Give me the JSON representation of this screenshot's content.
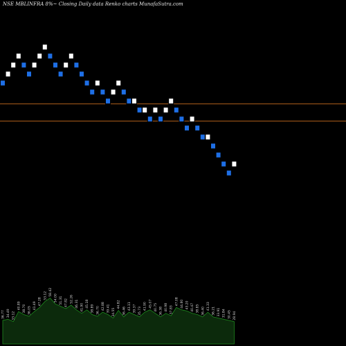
{
  "chart_data": {
    "type": "renko",
    "title": "NSE MBLINFRA 8%~ Closing Daily data Renko charts MunafaSutra.com",
    "colors": {
      "background": "#000000",
      "up_brick": "#ffffff",
      "down_brick": "#1e6fe6",
      "brick_border": "#000000",
      "reference_line": "#b8651b",
      "volume_fill": "#0c2a0c",
      "volume_stroke": "#1e8a1e",
      "volume_label": "#d8d8d8"
    },
    "price_axis_range": [
      0,
      100
    ],
    "reference_levels": [
      70.0,
      65.0
    ],
    "bricks": [
      {
        "dir": "down",
        "price": 76.0
      },
      {
        "dir": "up",
        "price": 78.6
      },
      {
        "dir": "up",
        "price": 81.2
      },
      {
        "dir": "up",
        "price": 83.8
      },
      {
        "dir": "down",
        "price": 81.2
      },
      {
        "dir": "down",
        "price": 78.6
      },
      {
        "dir": "up",
        "price": 81.2
      },
      {
        "dir": "up",
        "price": 83.8
      },
      {
        "dir": "up",
        "price": 86.4
      },
      {
        "dir": "down",
        "price": 83.8
      },
      {
        "dir": "down",
        "price": 81.2
      },
      {
        "dir": "down",
        "price": 78.6
      },
      {
        "dir": "up",
        "price": 81.2
      },
      {
        "dir": "up",
        "price": 83.8
      },
      {
        "dir": "down",
        "price": 81.2
      },
      {
        "dir": "down",
        "price": 78.6
      },
      {
        "dir": "down",
        "price": 76.0
      },
      {
        "dir": "down",
        "price": 73.4
      },
      {
        "dir": "up",
        "price": 76.0
      },
      {
        "dir": "down",
        "price": 73.4
      },
      {
        "dir": "down",
        "price": 70.8
      },
      {
        "dir": "up",
        "price": 73.4
      },
      {
        "dir": "up",
        "price": 76.0
      },
      {
        "dir": "down",
        "price": 73.4
      },
      {
        "dir": "down",
        "price": 70.8
      },
      {
        "dir": "up",
        "price": 70.8
      },
      {
        "dir": "down",
        "price": 68.2
      },
      {
        "dir": "up",
        "price": 68.2
      },
      {
        "dir": "down",
        "price": 65.6
      },
      {
        "dir": "up",
        "price": 68.2
      },
      {
        "dir": "down",
        "price": 65.6
      },
      {
        "dir": "up",
        "price": 68.2
      },
      {
        "dir": "up",
        "price": 70.8
      },
      {
        "dir": "down",
        "price": 68.2
      },
      {
        "dir": "down",
        "price": 65.6
      },
      {
        "dir": "down",
        "price": 63.0
      },
      {
        "dir": "up",
        "price": 65.6
      },
      {
        "dir": "down",
        "price": 63.0
      },
      {
        "dir": "down",
        "price": 60.4
      },
      {
        "dir": "up",
        "price": 60.4
      },
      {
        "dir": "down",
        "price": 57.8
      },
      {
        "dir": "down",
        "price": 55.2
      },
      {
        "dir": "down",
        "price": 52.6
      },
      {
        "dir": "down",
        "price": 50.0
      },
      {
        "dir": "up",
        "price": 52.6
      }
    ],
    "volume": [
      40,
      42,
      38,
      55,
      50,
      47,
      55,
      62,
      72,
      78,
      68,
      64,
      60,
      66,
      58,
      52,
      58,
      50,
      47,
      54,
      50,
      44,
      57,
      46,
      54,
      50,
      46,
      54,
      58,
      52,
      46,
      52,
      48,
      62,
      58,
      56,
      52,
      50,
      46,
      54,
      46,
      44,
      42,
      40,
      38
    ],
    "volume_labels": [
      "36.77",
      "34.49",
      "33.12",
      "40.89",
      "38.70",
      "36.05",
      "41.49",
      "47.28",
      "53.12",
      "58.42",
      "54.00",
      "51.31",
      "47.82",
      "52.26",
      "46.31",
      "41.90",
      "45.18",
      "38.89",
      "36.70",
      "42.88",
      "39.41",
      "34.55",
      "44.82",
      "36.46",
      "43.11",
      "39.37",
      "35.73",
      "41.90",
      "45.07",
      "40.75",
      "36.38",
      "40.98",
      "37.83",
      "47.08",
      "44.80",
      "43.20",
      "40.47",
      "38.85",
      "36.40",
      "41.33",
      "36.21",
      "33.91",
      "31.84",
      "30.45",
      "28.94"
    ]
  }
}
